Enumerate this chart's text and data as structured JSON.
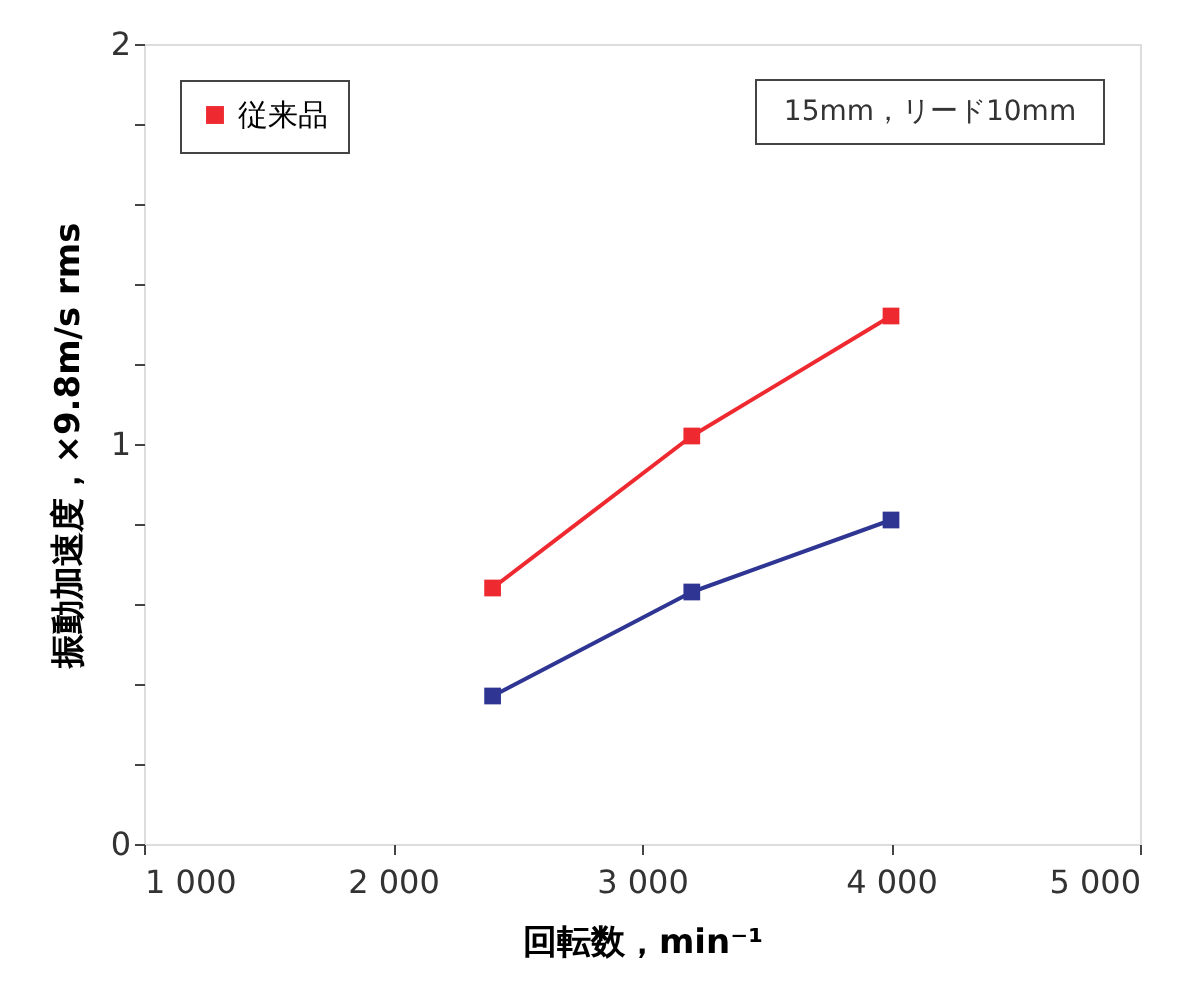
{
  "chart_data": {
    "type": "line",
    "xlabel": "回転数，min⁻¹",
    "ylabel": "振動加速度，×9.8m/s rms",
    "annotations": [
      "15mm，リード10mm"
    ],
    "x": [
      2400,
      3200,
      4000
    ],
    "series": [
      {
        "name": "従来品",
        "color": "#ee2a30",
        "values": [
          0.64,
          1.02,
          1.32
        ]
      },
      {
        "color": "#2e3593",
        "values": [
          0.37,
          0.63,
          0.81
        ]
      }
    ],
    "xlim": [
      1000,
      5000
    ],
    "xticks": [
      {
        "value": 1000,
        "label": "1 000"
      },
      {
        "value": 2000,
        "label": "2 000"
      },
      {
        "value": 3000,
        "label": "3 000"
      },
      {
        "value": 4000,
        "label": "4 000"
      },
      {
        "value": 5000,
        "label": "5 000"
      }
    ],
    "ylim": [
      0,
      2
    ],
    "yticks": [
      0,
      {
        "value": 0.2,
        "label": null
      },
      {
        "value": 0.4,
        "label": null
      },
      {
        "value": 0.6,
        "label": null
      },
      {
        "value": 0.8,
        "label": null
      },
      1,
      {
        "value": 1.2,
        "label": null
      },
      {
        "value": 1.4,
        "label": null
      },
      {
        "value": 1.6,
        "label": null
      },
      {
        "value": 1.8,
        "label": null
      },
      2
    ],
    "grid": false,
    "legend": "top left",
    "marker": "square",
    "line_style": "solid"
  }
}
